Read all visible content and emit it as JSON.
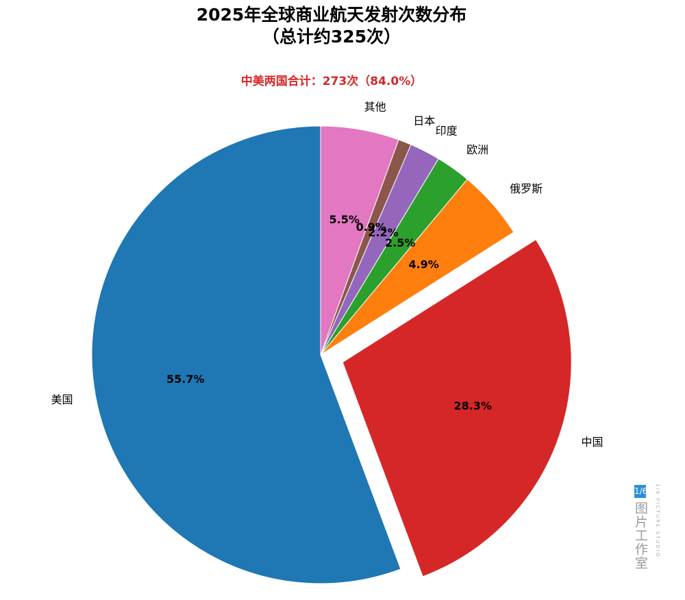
{
  "chart_data": {
    "type": "pie",
    "title_line1": "2025年全球商业航天发射次数分布",
    "title_line2": "（总计约325次）",
    "annotation": "中美两国合计：273次（84.0%）",
    "slices": [
      {
        "label": "美国",
        "value": 181,
        "pct": "55.7%",
        "color": "#1f77b4",
        "explode": false
      },
      {
        "label": "中国",
        "value": 92,
        "pct": "28.3%",
        "color": "#d62728",
        "explode": true
      },
      {
        "label": "俄罗斯",
        "value": 16,
        "pct": "4.9%",
        "color": "#ff7f0e",
        "explode": false
      },
      {
        "label": "欧洲",
        "value": 8,
        "pct": "2.5%",
        "color": "#2ca02c",
        "explode": false
      },
      {
        "label": "印度",
        "value": 7,
        "pct": "2.2%",
        "color": "#9467bd",
        "explode": false
      },
      {
        "label": "日本",
        "value": 3,
        "pct": "0.9%",
        "color": "#8c564b",
        "explode": false
      },
      {
        "label": "其他",
        "value": 18,
        "pct": "5.5%",
        "color": "#e377c2",
        "explode": false
      }
    ]
  },
  "watermark": {
    "badge": "1/6",
    "name": "图片工作室",
    "english": "1/6 PICTURE STUDIO"
  }
}
